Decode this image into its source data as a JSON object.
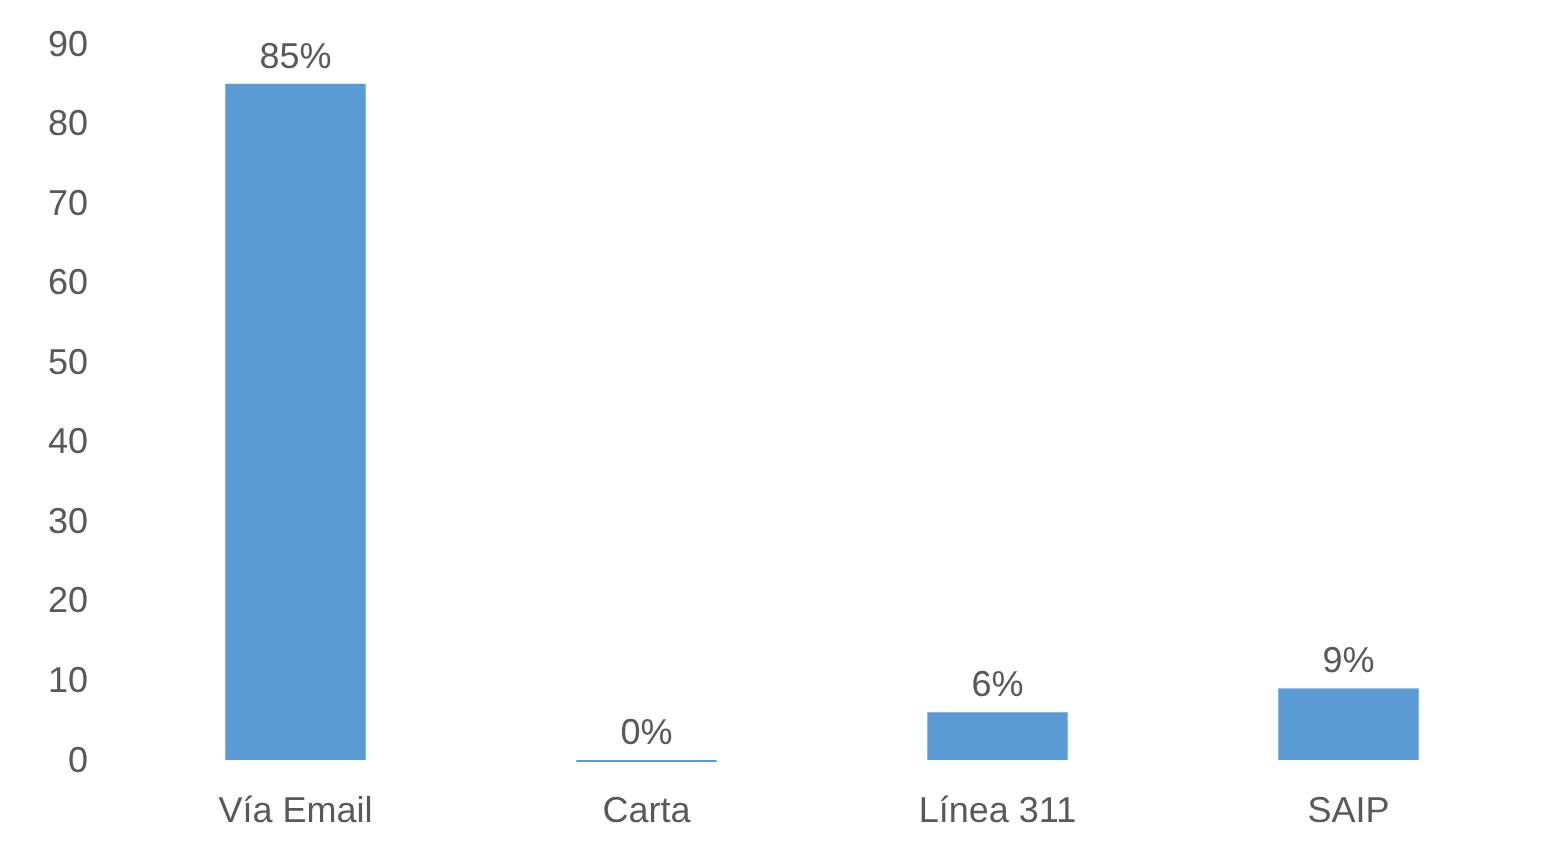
{
  "chart_data": {
    "type": "bar",
    "categories": [
      "Vía Email",
      "Carta",
      "Línea 311",
      "SAIP"
    ],
    "values": [
      85,
      0,
      6,
      9
    ],
    "value_labels": [
      "85%",
      "0%",
      "6%",
      "9%"
    ],
    "color": "#5b9bd5",
    "ylim": [
      0,
      90
    ],
    "yticks": [
      0,
      10,
      20,
      30,
      40,
      50,
      60,
      70,
      80,
      90
    ],
    "grid": false
  }
}
